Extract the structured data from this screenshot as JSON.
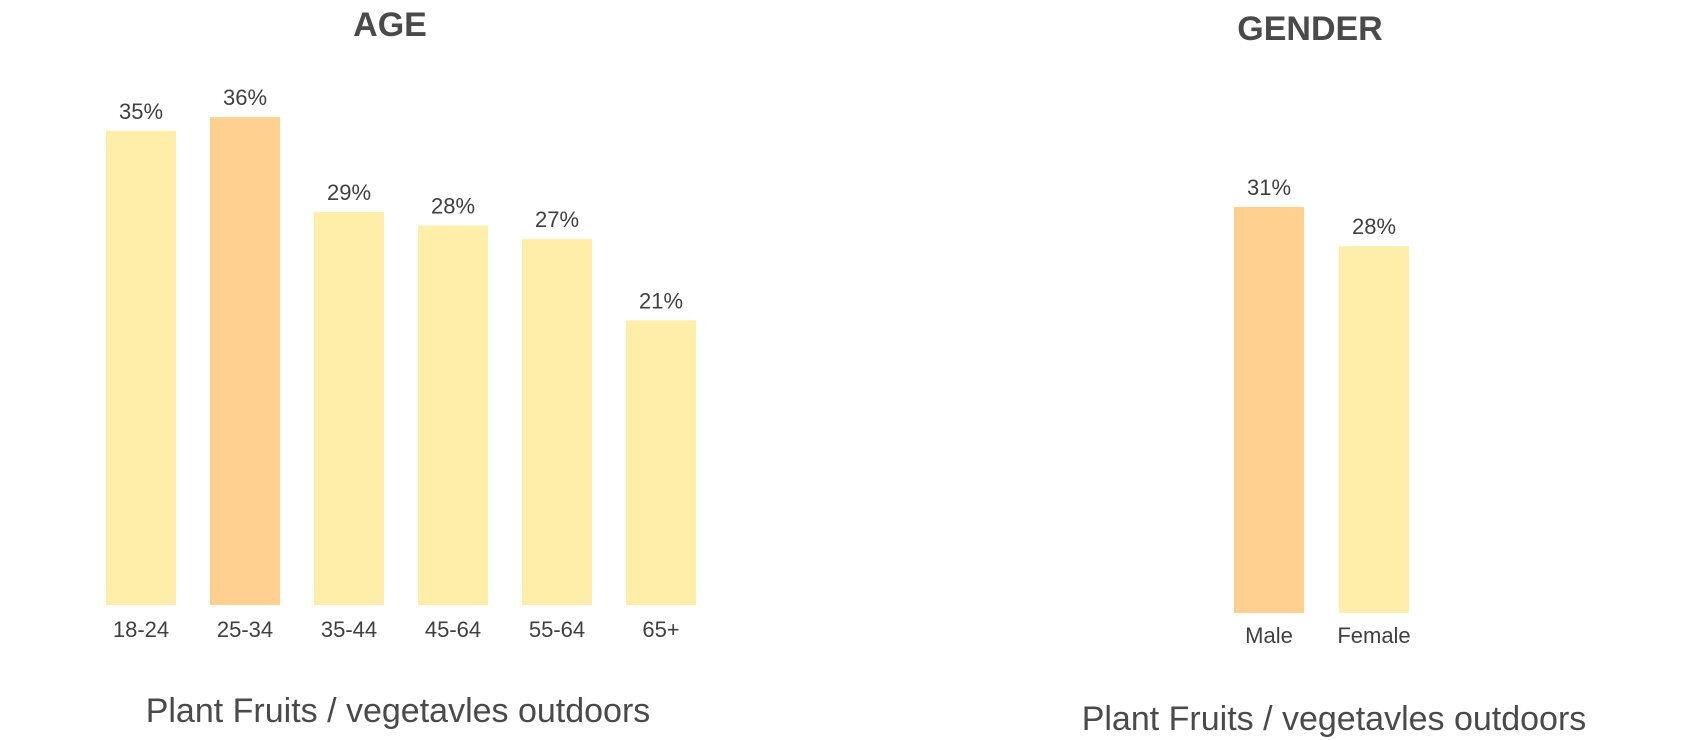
{
  "colors": {
    "bar": "#ffedaa",
    "highlight": "#ffd08f",
    "text": "#404040",
    "title": "#4a4a4a"
  },
  "chart_data": [
    {
      "type": "bar",
      "title": "AGE",
      "caption": "Plant Fruits / vegetavles outdoors",
      "categories": [
        "18-24",
        "25-34",
        "35-44",
        "45-64",
        "55-64",
        "65+"
      ],
      "values": [
        35,
        36,
        29,
        28,
        27,
        21
      ],
      "value_labels": [
        "35%",
        "36%",
        "29%",
        "28%",
        "27%",
        "21%"
      ],
      "highlight": [
        false,
        true,
        false,
        false,
        false,
        false
      ],
      "xlabel": "",
      "ylabel": "",
      "grid": false,
      "legend": "none"
    },
    {
      "type": "bar",
      "title": "GENDER",
      "caption": "Plant Fruits / vegetavles outdoors",
      "categories": [
        "Male",
        "Female"
      ],
      "values": [
        31,
        28
      ],
      "value_labels": [
        "31%",
        "28%"
      ],
      "highlight": [
        true,
        false
      ],
      "xlabel": "",
      "ylabel": "",
      "grid": false,
      "legend": "none"
    }
  ]
}
